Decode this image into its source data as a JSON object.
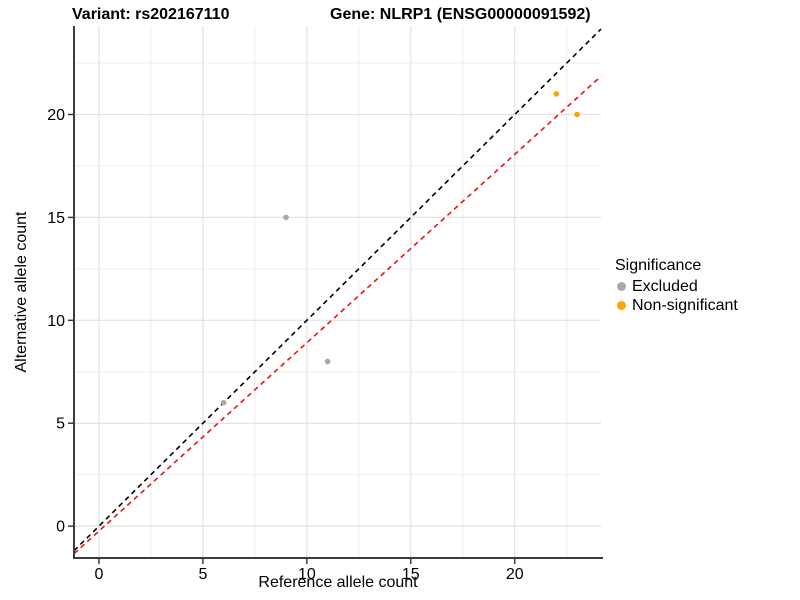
{
  "chart_data": {
    "type": "scatter",
    "title_left": "Variant: rs202167110",
    "title_right": "Gene: NLRP1 (ENSG00000091592)",
    "xlabel": "Reference allele count",
    "ylabel": "Alternative allele count",
    "xlim": [
      -1.2,
      24.15
    ],
    "ylim": [
      -1.5,
      24.3
    ],
    "xticks": [
      0,
      5,
      10,
      15,
      20
    ],
    "yticks": [
      0,
      5,
      10,
      15,
      20
    ],
    "minor_xticks": [
      2.5,
      7.5,
      12.5,
      17.5,
      22.5
    ],
    "minor_yticks": [
      2.5,
      7.5,
      12.5,
      17.5,
      22.5
    ],
    "grid": true,
    "legend_position": "right",
    "series": [
      {
        "name": "Excluded",
        "color": "#A9A9A9",
        "points": [
          [
            6,
            6
          ],
          [
            9,
            15
          ],
          [
            11,
            8
          ]
        ]
      },
      {
        "name": "Non-significant",
        "color": "#FFA500",
        "points": [
          [
            22,
            21
          ],
          [
            23,
            20
          ]
        ]
      }
    ],
    "lines": [
      {
        "name": "identity-line",
        "color": "#000000",
        "dash": "5,4",
        "x1": -1.2,
        "y1": -1.2,
        "x2": 24.15,
        "y2": 24.15
      },
      {
        "name": "fit-line",
        "color": "#ED1111",
        "dash": "5,4",
        "x1": -1.2,
        "y1": -1.34,
        "x2": 24.15,
        "y2": 21.86
      }
    ],
    "legend": {
      "title": "Significance",
      "items": [
        {
          "label": "Excluded",
          "color": "#A9A9A9"
        },
        {
          "label": "Non-significant",
          "color": "#FFA500"
        }
      ]
    },
    "colors": {
      "axis_line": "#3C3C3C",
      "grid_major": "#E2E2E2",
      "grid_minor": "#EDEDED",
      "tick_text": "#000000"
    }
  }
}
